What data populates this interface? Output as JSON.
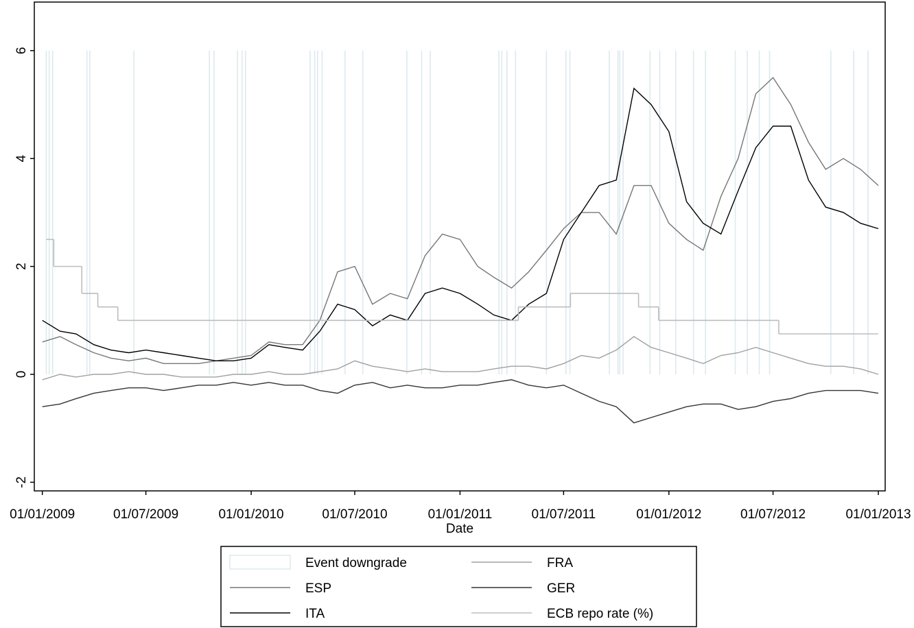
{
  "chart_data": {
    "type": "line",
    "xlabel": "Date",
    "xlim": [
      "2008-12-18",
      "2013-01-13"
    ],
    "xticks": [
      {
        "value": "2009-01-01",
        "label": "01/01/2009"
      },
      {
        "value": "2009-07-01",
        "label": "01/07/2009"
      },
      {
        "value": "2010-01-01",
        "label": "01/01/2010"
      },
      {
        "value": "2010-07-01",
        "label": "01/07/2010"
      },
      {
        "value": "2011-01-01",
        "label": "01/01/2011"
      },
      {
        "value": "2011-07-01",
        "label": "01/07/2011"
      },
      {
        "value": "2012-01-01",
        "label": "01/01/2012"
      },
      {
        "value": "2012-07-01",
        "label": "01/07/2012"
      },
      {
        "value": "2013-01-01",
        "label": "01/01/2013"
      }
    ],
    "ylim": [
      -2.16,
      6.9
    ],
    "yticks": [
      -2,
      0,
      2,
      4,
      6
    ],
    "legend": "bottom",
    "x": [
      "2009-01-01",
      "2009-02-01",
      "2009-03-01",
      "2009-04-01",
      "2009-05-01",
      "2009-06-01",
      "2009-07-01",
      "2009-08-01",
      "2009-09-01",
      "2009-10-01",
      "2009-11-01",
      "2009-12-01",
      "2010-01-01",
      "2010-02-01",
      "2010-03-01",
      "2010-04-01",
      "2010-05-01",
      "2010-06-01",
      "2010-07-01",
      "2010-08-01",
      "2010-09-01",
      "2010-10-01",
      "2010-11-01",
      "2010-12-01",
      "2011-01-01",
      "2011-02-01",
      "2011-03-01",
      "2011-04-01",
      "2011-05-01",
      "2011-06-01",
      "2011-07-01",
      "2011-08-01",
      "2011-09-01",
      "2011-10-01",
      "2011-11-01",
      "2011-12-01",
      "2012-01-01",
      "2012-02-01",
      "2012-03-01",
      "2012-04-01",
      "2012-05-01",
      "2012-06-01",
      "2012-07-01",
      "2012-08-01",
      "2012-09-01",
      "2012-10-01",
      "2012-11-01",
      "2012-12-01",
      "2013-01-01"
    ],
    "series": [
      {
        "name": "Event downgrade",
        "kind": "bar",
        "color": "#dde9ee",
        "x": [
          "2009-01-08",
          "2009-01-13",
          "2009-01-19",
          "2009-03-20",
          "2009-03-25",
          "2009-06-10",
          "2009-10-20",
          "2009-10-28",
          "2009-12-08",
          "2009-12-16",
          "2009-12-22",
          "2010-04-14",
          "2010-04-22",
          "2010-04-27",
          "2010-05-05",
          "2010-06-14",
          "2010-07-15",
          "2010-09-30",
          "2010-10-26",
          "2010-11-10",
          "2011-03-10",
          "2011-03-15",
          "2011-03-24",
          "2011-04-08",
          "2011-06-01",
          "2011-07-05",
          "2011-07-12",
          "2011-09-19",
          "2011-10-04",
          "2011-10-07",
          "2011-10-13",
          "2011-11-29",
          "2011-12-16",
          "2012-01-13",
          "2012-02-13",
          "2012-03-05",
          "2012-04-26",
          "2012-05-17",
          "2012-06-07",
          "2012-06-25",
          "2012-10-10",
          "2012-11-19",
          "2012-12-14"
        ],
        "values": [
          6,
          6,
          6,
          6,
          6,
          6,
          6,
          6,
          6,
          6,
          6,
          6,
          6,
          6,
          6,
          6,
          6,
          6,
          6,
          6,
          6,
          6,
          6,
          6,
          6,
          6,
          6,
          6,
          6,
          6,
          6,
          6,
          6,
          6,
          6,
          6,
          6,
          6,
          6,
          6,
          6,
          6,
          6
        ]
      },
      {
        "name": "ESP",
        "kind": "line",
        "color": "#777777",
        "values": [
          0.6,
          0.7,
          0.55,
          0.4,
          0.3,
          0.25,
          0.3,
          0.2,
          0.2,
          0.2,
          0.25,
          0.3,
          0.35,
          0.6,
          0.55,
          0.55,
          1.0,
          1.9,
          2.0,
          1.3,
          1.5,
          1.4,
          2.2,
          2.6,
          2.5,
          2.0,
          1.8,
          1.6,
          1.9,
          2.3,
          2.7,
          3.0,
          3.0,
          2.6,
          3.5,
          3.5,
          2.8,
          2.5,
          2.3,
          3.3,
          4.0,
          5.2,
          5.5,
          5.0,
          4.3,
          3.8,
          4.0,
          3.8,
          3.5
        ]
      },
      {
        "name": "ITA",
        "kind": "line",
        "color": "#000000",
        "values": [
          1.0,
          0.8,
          0.75,
          0.55,
          0.45,
          0.4,
          0.45,
          0.4,
          0.35,
          0.3,
          0.25,
          0.25,
          0.3,
          0.55,
          0.5,
          0.45,
          0.8,
          1.3,
          1.2,
          0.9,
          1.1,
          1.0,
          1.5,
          1.6,
          1.5,
          1.3,
          1.1,
          1.0,
          1.3,
          1.5,
          2.5,
          3.0,
          3.5,
          3.6,
          5.3,
          5.0,
          4.5,
          3.2,
          2.8,
          2.6,
          3.4,
          4.2,
          4.6,
          4.6,
          3.6,
          3.1,
          3.0,
          2.8,
          2.7
        ]
      },
      {
        "name": "FRA",
        "kind": "line",
        "color": "#a0a0a0",
        "values": [
          -0.1,
          0.0,
          -0.05,
          0.0,
          0.0,
          0.05,
          0.0,
          0.0,
          -0.05,
          -0.05,
          -0.05,
          0.0,
          0.0,
          0.05,
          0.0,
          0.0,
          0.05,
          0.1,
          0.25,
          0.15,
          0.1,
          0.05,
          0.1,
          0.05,
          0.05,
          0.05,
          0.1,
          0.15,
          0.15,
          0.1,
          0.2,
          0.35,
          0.3,
          0.45,
          0.7,
          0.5,
          0.4,
          0.3,
          0.2,
          0.35,
          0.4,
          0.5,
          0.4,
          0.3,
          0.2,
          0.15,
          0.15,
          0.1,
          0.0
        ]
      },
      {
        "name": "GER",
        "kind": "line",
        "color": "#333333",
        "values": [
          -0.6,
          -0.55,
          -0.45,
          -0.35,
          -0.3,
          -0.25,
          -0.25,
          -0.3,
          -0.25,
          -0.2,
          -0.2,
          -0.15,
          -0.2,
          -0.15,
          -0.2,
          -0.2,
          -0.3,
          -0.35,
          -0.2,
          -0.15,
          -0.25,
          -0.2,
          -0.25,
          -0.25,
          -0.2,
          -0.2,
          -0.15,
          -0.1,
          -0.2,
          -0.25,
          -0.2,
          -0.35,
          -0.5,
          -0.6,
          -0.9,
          -0.8,
          -0.7,
          -0.6,
          -0.55,
          -0.55,
          -0.65,
          -0.6,
          -0.5,
          -0.45,
          -0.35,
          -0.3,
          -0.3,
          -0.3,
          -0.35
        ]
      },
      {
        "name": "ECB repo rate (%)",
        "kind": "step",
        "color": "#bdbdbd",
        "x": [
          "2009-01-08",
          "2009-01-21",
          "2009-03-11",
          "2009-04-08",
          "2009-05-13",
          "2011-04-13",
          "2011-07-13",
          "2011-11-09",
          "2011-12-14",
          "2012-07-11"
        ],
        "values": [
          2.5,
          2,
          1.5,
          1.25,
          1,
          1.25,
          1.5,
          1.25,
          1,
          0.75
        ]
      }
    ]
  }
}
